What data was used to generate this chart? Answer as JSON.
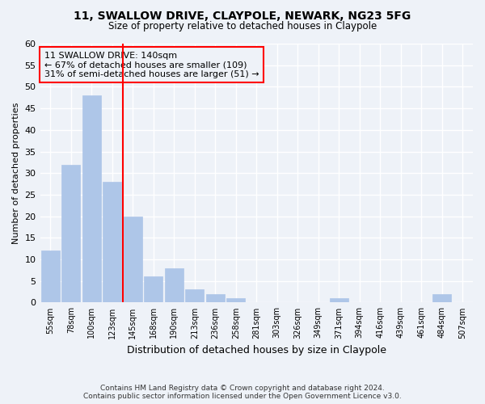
{
  "title1": "11, SWALLOW DRIVE, CLAYPOLE, NEWARK, NG23 5FG",
  "title2": "Size of property relative to detached houses in Claypole",
  "xlabel": "Distribution of detached houses by size in Claypole",
  "ylabel": "Number of detached properties",
  "bar_labels": [
    "55sqm",
    "78sqm",
    "100sqm",
    "123sqm",
    "145sqm",
    "168sqm",
    "190sqm",
    "213sqm",
    "236sqm",
    "258sqm",
    "281sqm",
    "303sqm",
    "326sqm",
    "349sqm",
    "371sqm",
    "394sqm",
    "416sqm",
    "439sqm",
    "461sqm",
    "484sqm",
    "507sqm"
  ],
  "bar_values": [
    12,
    32,
    48,
    28,
    20,
    6,
    8,
    3,
    2,
    1,
    0,
    0,
    0,
    0,
    1,
    0,
    0,
    0,
    0,
    2,
    0
  ],
  "bar_color": "#aec6e8",
  "bar_edgecolor": "#aec6e8",
  "vline_x_bar_index": 3.5,
  "vline_color": "red",
  "annotation_text": "11 SWALLOW DRIVE: 140sqm\n← 67% of detached houses are smaller (109)\n31% of semi-detached houses are larger (51) →",
  "annotation_box_edgecolor": "red",
  "ylim": [
    0,
    60
  ],
  "yticks": [
    0,
    5,
    10,
    15,
    20,
    25,
    30,
    35,
    40,
    45,
    50,
    55,
    60
  ],
  "footnote": "Contains HM Land Registry data © Crown copyright and database right 2024.\nContains public sector information licensed under the Open Government Licence v3.0.",
  "bg_color": "#eef2f8",
  "grid_color": "white"
}
